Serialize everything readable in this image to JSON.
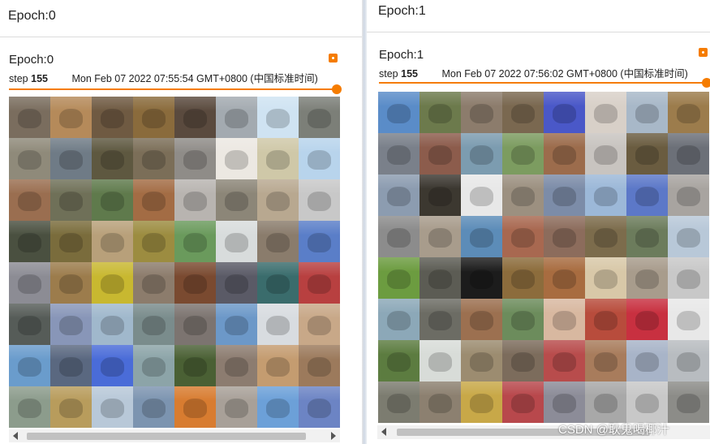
{
  "left_panel": {
    "heading": "Epoch:0",
    "card": {
      "title": "Epoch:0",
      "step_label": "step",
      "step_value": "155",
      "timestamp": "Mon Feb 07 2022 07:55:54 GMT+0800 (中国标准时间)",
      "menu_icon": "more-vert-icon"
    },
    "tiles": [
      "#7a6d5e",
      "#b58a5a",
      "#6f5a42",
      "#8a6b3c",
      "#5a4a3e",
      "#a3aab0",
      "#cfe3f2",
      "#7c7f78",
      "#8f8a7a",
      "#6f7b86",
      "#5e5840",
      "#7b6e58",
      "#8f8c88",
      "#ece8e2",
      "#cfc8a8",
      "#b8d4ec",
      "#9a6e50",
      "#6f7058",
      "#5f7a4c",
      "#a36c44",
      "#b8b4b0",
      "#8c8678",
      "#b8a890",
      "#c8c8c8",
      "#4a5040",
      "#7a6c3c",
      "#b8a07a",
      "#9c8c40",
      "#6a9a5c",
      "#d8dcdc",
      "#8a7c6c",
      "#5a7ec8",
      "#8c8c94",
      "#9c7c4c",
      "#c8b830",
      "#8c7c6c",
      "#7a4a30",
      "#5a5a66",
      "#3a6c6c",
      "#b84040",
      "#565c58",
      "#8896b8",
      "#a0b8cc",
      "#7a8c8c",
      "#7c7470",
      "#6c98c8",
      "#d8dce0",
      "#c8a888",
      "#6a9ccc",
      "#5a6880",
      "#4a6cd8",
      "#8ca4a8",
      "#4a6034",
      "#8c7c70",
      "#c49c70",
      "#9c7a5c",
      "#8c9c8c",
      "#b89c5c",
      "#b8c8d8",
      "#7c94b0",
      "#d87c30",
      "#a8a098",
      "#6ca0d8",
      "#6c84c4"
    ]
  },
  "right_panel": {
    "heading": "Epoch:1",
    "card": {
      "title": "Epoch:1",
      "step_label": "step",
      "step_value": "155",
      "timestamp": "Mon Feb 07 2022 07:56:02 GMT+0800 (中国标准时间)",
      "menu_icon": "more-vert-icon"
    },
    "tiles": [
      "#5a8cc8",
      "#6c7a4c",
      "#8c7c6c",
      "#7a6850",
      "#4a58c8",
      "#d8d0c8",
      "#a8b8c8",
      "#9c7c4c",
      "#7a808a",
      "#8c5c4c",
      "#7c9cb0",
      "#7c9c60",
      "#9c6c4c",
      "#c8c4c0",
      "#6a5c40",
      "#6c7078",
      "#8c9cb0",
      "#3c3830",
      "#e8e8e8",
      "#9c9080",
      "#7c8ca8",
      "#9cb8d8",
      "#5c78c8",
      "#a8a4a0",
      "#8c8c8c",
      "#a89c8c",
      "#5c8cb8",
      "#a86850",
      "#8c6c5c",
      "#7c6c4c",
      "#6c7c5c",
      "#b8c8d8",
      "#6c9c40",
      "#5c5c54",
      "#1c1c1c",
      "#8c6c3c",
      "#a86c40",
      "#d8c8a8",
      "#a89c8c",
      "#c8c8c8",
      "#8ca8b8",
      "#6c6c64",
      "#9c7050",
      "#6c8c5c",
      "#d8b8a0",
      "#b84c3c",
      "#c83040",
      "#e8e8e8",
      "#5c7c40",
      "#d8dcd8",
      "#9c8c70",
      "#7c6c5c",
      "#b84c4c",
      "#a87c5c",
      "#a8b4c8",
      "#b8bcc0",
      "#7c7c70",
      "#8c8070",
      "#c8a848",
      "#b8484c",
      "#8c8c98",
      "#a8a8a8",
      "#c8c8c8",
      "#8c8c88"
    ]
  },
  "watermark": "CSDN @耿鬼喝椰汁"
}
